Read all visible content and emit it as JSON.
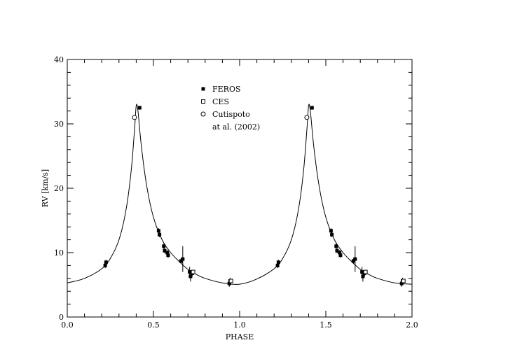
{
  "chart_data": {
    "type": "scatter",
    "title": "",
    "xlabel": "PHASE",
    "ylabel": "RV [km/s]",
    "xlim": [
      0.0,
      2.0
    ],
    "ylim": [
      0,
      40
    ],
    "x_major_ticks": [
      0.0,
      0.5,
      1.0,
      1.5,
      2.0
    ],
    "x_tick_labels": [
      "0.0",
      "0.5",
      "1.0",
      "1.5",
      "2.0"
    ],
    "y_major_ticks": [
      0,
      10,
      20,
      30,
      40
    ],
    "y_tick_labels": [
      "0",
      "10",
      "20",
      "30",
      "40"
    ],
    "grid": false,
    "legend_placement": "top-center",
    "legend": [
      {
        "marker": "filled-square",
        "lines": [
          "FEROS"
        ]
      },
      {
        "marker": "open-square",
        "lines": [
          "CES"
        ]
      },
      {
        "marker": "open-circle",
        "lines": [
          "Cutispoto",
          "at al. (2002)"
        ]
      }
    ],
    "model_curve": {
      "name": "",
      "x": [
        0.0,
        0.1,
        0.2,
        0.25,
        0.3,
        0.34,
        0.37,
        0.39,
        0.4,
        0.41,
        0.43,
        0.46,
        0.5,
        0.55,
        0.6,
        0.65,
        0.7,
        0.75,
        0.8,
        0.9,
        1.0,
        1.1,
        1.2,
        1.25,
        1.3,
        1.34,
        1.37,
        1.39,
        1.4,
        1.41,
        1.43,
        1.46,
        1.5,
        1.55,
        1.6,
        1.65,
        1.7,
        1.75,
        1.8,
        1.9,
        2.0
      ],
      "y": [
        5.3,
        6.0,
        7.5,
        9.1,
        12.0,
        16.5,
        22.5,
        29.0,
        32.8,
        32.0,
        26.5,
        20.5,
        15.5,
        12.0,
        10.0,
        8.6,
        7.4,
        6.6,
        6.0,
        5.3,
        5.1,
        5.9,
        7.5,
        9.1,
        12.0,
        16.5,
        22.5,
        29.0,
        32.8,
        32.0,
        26.5,
        20.5,
        15.5,
        12.0,
        10.0,
        8.6,
        7.4,
        6.6,
        6.0,
        5.3,
        5.1
      ]
    },
    "series": [
      {
        "marker": "filled-square",
        "points": [
          {
            "x": 0.22,
            "y": 8.0,
            "err": 0.4
          },
          {
            "x": 0.225,
            "y": 8.5,
            "err": 0.4
          },
          {
            "x": 0.42,
            "y": 32.5,
            "err": 0.3
          },
          {
            "x": 0.53,
            "y": 13.4,
            "err": 0.4
          },
          {
            "x": 0.535,
            "y": 12.8,
            "err": 0.4
          },
          {
            "x": 0.56,
            "y": 11.0,
            "err": 0.4
          },
          {
            "x": 0.565,
            "y": 10.3,
            "err": 0.4
          },
          {
            "x": 0.58,
            "y": 10.0,
            "err": 0.4
          },
          {
            "x": 0.585,
            "y": 9.6,
            "err": 0.4
          },
          {
            "x": 0.66,
            "y": 8.7,
            "err": 0.4
          },
          {
            "x": 0.67,
            "y": 9.0,
            "err": 2.0
          },
          {
            "x": 0.71,
            "y": 7.0,
            "err": 0.8
          },
          {
            "x": 0.715,
            "y": 6.3,
            "err": 0.8
          },
          {
            "x": 0.725,
            "y": 6.8,
            "err": 0.5
          },
          {
            "x": 0.94,
            "y": 5.2,
            "err": 0.5
          },
          {
            "x": 0.945,
            "y": 5.6,
            "err": 0.5
          },
          {
            "x": 1.22,
            "y": 8.0,
            "err": 0.4
          },
          {
            "x": 1.225,
            "y": 8.5,
            "err": 0.4
          },
          {
            "x": 1.42,
            "y": 32.5,
            "err": 0.3
          },
          {
            "x": 1.53,
            "y": 13.4,
            "err": 0.4
          },
          {
            "x": 1.535,
            "y": 12.8,
            "err": 0.4
          },
          {
            "x": 1.56,
            "y": 11.0,
            "err": 0.4
          },
          {
            "x": 1.565,
            "y": 10.3,
            "err": 0.4
          },
          {
            "x": 1.58,
            "y": 10.0,
            "err": 0.4
          },
          {
            "x": 1.585,
            "y": 9.6,
            "err": 0.4
          },
          {
            "x": 1.66,
            "y": 8.7,
            "err": 0.4
          },
          {
            "x": 1.67,
            "y": 9.0,
            "err": 2.0
          },
          {
            "x": 1.71,
            "y": 7.0,
            "err": 0.8
          },
          {
            "x": 1.715,
            "y": 6.3,
            "err": 0.8
          },
          {
            "x": 1.725,
            "y": 6.8,
            "err": 0.5
          },
          {
            "x": 1.94,
            "y": 5.2,
            "err": 0.5
          },
          {
            "x": 1.945,
            "y": 5.6,
            "err": 0.5
          }
        ]
      },
      {
        "marker": "open-square",
        "points": [
          {
            "x": 0.73,
            "y": 7.0
          },
          {
            "x": 0.95,
            "y": 5.6
          },
          {
            "x": 1.73,
            "y": 7.0
          },
          {
            "x": 1.95,
            "y": 5.6
          }
        ]
      },
      {
        "marker": "open-circle",
        "points": [
          {
            "x": 0.39,
            "y": 31.0
          },
          {
            "x": 1.39,
            "y": 31.0
          }
        ]
      }
    ]
  }
}
